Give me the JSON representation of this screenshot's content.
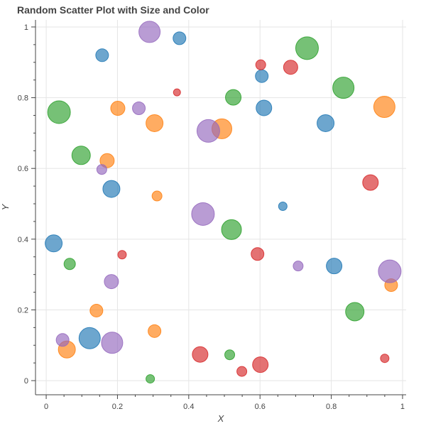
{
  "chart_data": {
    "type": "scatter",
    "title": "Random Scatter Plot with Size and Color",
    "xlabel": "X",
    "ylabel": "Y",
    "xlim": [
      -0.03,
      1.01
    ],
    "ylim": [
      -0.04,
      1.02
    ],
    "xticks": [
      "0",
      "0.2",
      "0.4",
      "0.6",
      "0.8",
      "1"
    ],
    "xtick_values": [
      0,
      0.2,
      0.4,
      0.6,
      0.8,
      1.0
    ],
    "yticks": [
      "0",
      "0.2",
      "0.4",
      "0.6",
      "0.8",
      "1"
    ],
    "ytick_values": [
      0,
      0.2,
      0.4,
      0.6,
      0.8,
      1.0
    ],
    "grid": true,
    "legend": "none",
    "series": [
      {
        "color": "#1f77b4",
        "points": [
          {
            "x": 0.157,
            "y": 0.92,
            "size": 9
          },
          {
            "x": 0.374,
            "y": 0.968,
            "size": 9
          },
          {
            "x": 0.605,
            "y": 0.861,
            "size": 9
          },
          {
            "x": 0.611,
            "y": 0.771,
            "size": 11
          },
          {
            "x": 0.784,
            "y": 0.728,
            "size": 12
          },
          {
            "x": 0.183,
            "y": 0.542,
            "size": 12
          },
          {
            "x": 0.664,
            "y": 0.493,
            "size": 6
          },
          {
            "x": 0.021,
            "y": 0.388,
            "size": 12
          },
          {
            "x": 0.808,
            "y": 0.324,
            "size": 11
          },
          {
            "x": 0.122,
            "y": 0.12,
            "size": 15
          }
        ]
      },
      {
        "color": "#ff7f0e",
        "points": [
          {
            "x": 0.201,
            "y": 0.77,
            "size": 10
          },
          {
            "x": 0.304,
            "y": 0.728,
            "size": 12
          },
          {
            "x": 0.493,
            "y": 0.712,
            "size": 14
          },
          {
            "x": 0.949,
            "y": 0.774,
            "size": 15
          },
          {
            "x": 0.171,
            "y": 0.622,
            "size": 10
          },
          {
            "x": 0.311,
            "y": 0.522,
            "size": 7
          },
          {
            "x": 0.968,
            "y": 0.27,
            "size": 9
          },
          {
            "x": 0.141,
            "y": 0.198,
            "size": 9
          },
          {
            "x": 0.304,
            "y": 0.14,
            "size": 9
          },
          {
            "x": 0.058,
            "y": 0.088,
            "size": 12
          }
        ]
      },
      {
        "color": "#2ca02c",
        "points": [
          {
            "x": 0.732,
            "y": 0.94,
            "size": 16
          },
          {
            "x": 0.834,
            "y": 0.828,
            "size": 15
          },
          {
            "x": 0.525,
            "y": 0.801,
            "size": 11
          },
          {
            "x": 0.036,
            "y": 0.759,
            "size": 16
          },
          {
            "x": 0.098,
            "y": 0.637,
            "size": 13
          },
          {
            "x": 0.52,
            "y": 0.427,
            "size": 14
          },
          {
            "x": 0.066,
            "y": 0.33,
            "size": 8
          },
          {
            "x": 0.866,
            "y": 0.195,
            "size": 13
          },
          {
            "x": 0.515,
            "y": 0.073,
            "size": 7
          },
          {
            "x": 0.292,
            "y": 0.005,
            "size": 6
          }
        ]
      },
      {
        "color": "#d62728",
        "points": [
          {
            "x": 0.602,
            "y": 0.893,
            "size": 7
          },
          {
            "x": 0.686,
            "y": 0.886,
            "size": 10
          },
          {
            "x": 0.367,
            "y": 0.815,
            "size": 5
          },
          {
            "x": 0.91,
            "y": 0.56,
            "size": 11
          },
          {
            "x": 0.213,
            "y": 0.356,
            "size": 6
          },
          {
            "x": 0.593,
            "y": 0.358,
            "size": 9
          },
          {
            "x": 0.432,
            "y": 0.074,
            "size": 11
          },
          {
            "x": 0.601,
            "y": 0.045,
            "size": 11
          },
          {
            "x": 0.549,
            "y": 0.026,
            "size": 7
          },
          {
            "x": 0.95,
            "y": 0.063,
            "size": 6
          }
        ]
      },
      {
        "color": "#9467bd",
        "points": [
          {
            "x": 0.29,
            "y": 0.986,
            "size": 15
          },
          {
            "x": 0.26,
            "y": 0.77,
            "size": 9
          },
          {
            "x": 0.455,
            "y": 0.706,
            "size": 16
          },
          {
            "x": 0.156,
            "y": 0.597,
            "size": 7
          },
          {
            "x": 0.44,
            "y": 0.471,
            "size": 16
          },
          {
            "x": 0.707,
            "y": 0.324,
            "size": 7
          },
          {
            "x": 0.964,
            "y": 0.309,
            "size": 16
          },
          {
            "x": 0.183,
            "y": 0.28,
            "size": 10
          },
          {
            "x": 0.046,
            "y": 0.115,
            "size": 9
          },
          {
            "x": 0.185,
            "y": 0.107,
            "size": 15
          }
        ]
      }
    ]
  }
}
